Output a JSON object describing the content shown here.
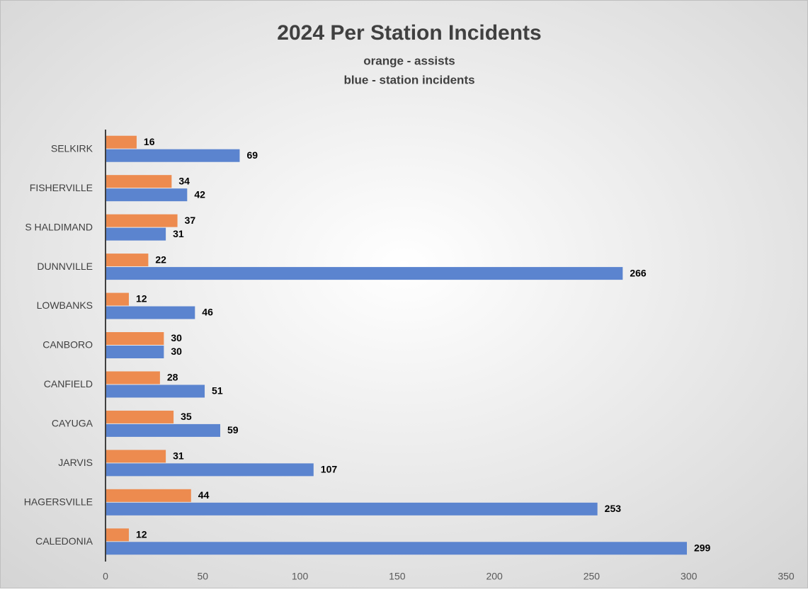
{
  "chart_data": {
    "type": "hbar",
    "title": "2024 Per Station Incidents",
    "subtitle": [
      "orange - assists",
      "blue - station incidents"
    ],
    "categories": [
      "SELKIRK",
      "FISHERVILLE",
      "S HALDIMAND",
      "DUNNVILLE",
      "LOWBANKS",
      "CANBORO",
      "CANFIELD",
      "CAYUGA",
      "JARVIS",
      "HAGERSVILLE",
      "CALEDONIA"
    ],
    "series": [
      {
        "color": "#ed8b4f",
        "values": [
          16,
          34,
          37,
          22,
          12,
          30,
          28,
          35,
          31,
          44,
          12
        ]
      },
      {
        "color": "#5b84cf",
        "values": [
          69,
          42,
          31,
          266,
          46,
          30,
          51,
          59,
          107,
          253,
          299
        ]
      }
    ],
    "xlim": [
      0,
      350
    ],
    "xticks": [
      0,
      50,
      100,
      150,
      200,
      250,
      300,
      350
    ]
  }
}
